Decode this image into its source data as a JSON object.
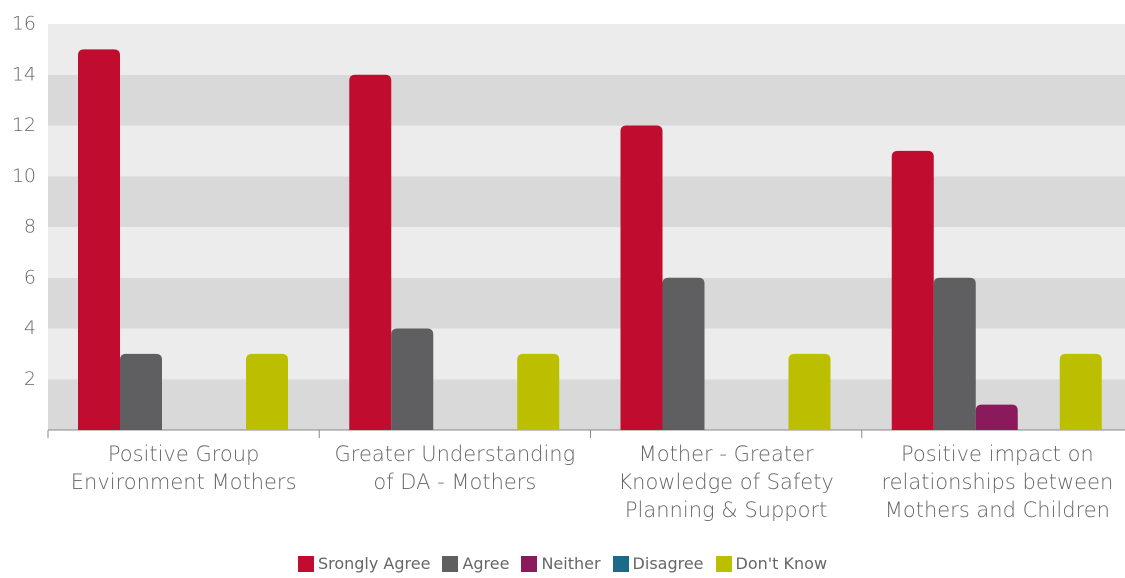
{
  "chart_data": {
    "type": "bar",
    "categories": [
      "Positive Group Environment Mothers",
      "Greater Understanding of DA - Mothers",
      "Mother - Greater Knowledge of Safety Planning & Support",
      "Positive impact on relationships between Mothers and Children"
    ],
    "series": [
      {
        "name": "Srongly Agree",
        "color": "#c00d2f",
        "values": [
          15,
          14,
          12,
          11
        ]
      },
      {
        "name": "Agree",
        "color": "#5f5f61",
        "values": [
          3,
          4,
          6,
          6
        ]
      },
      {
        "name": "Neither",
        "color": "#8a1a5c",
        "values": [
          0,
          0,
          0,
          1
        ]
      },
      {
        "name": "Disagree",
        "color": "#1b6a8a",
        "values": [
          0,
          0,
          0,
          0
        ]
      },
      {
        "name": "Don't Know",
        "color": "#bcbf00",
        "values": [
          3,
          3,
          3,
          3
        ]
      }
    ],
    "ylim": [
      0,
      16
    ],
    "yticks": [
      2,
      4,
      6,
      8,
      10,
      12,
      14,
      16
    ],
    "grid": true,
    "legend": "bottom"
  }
}
